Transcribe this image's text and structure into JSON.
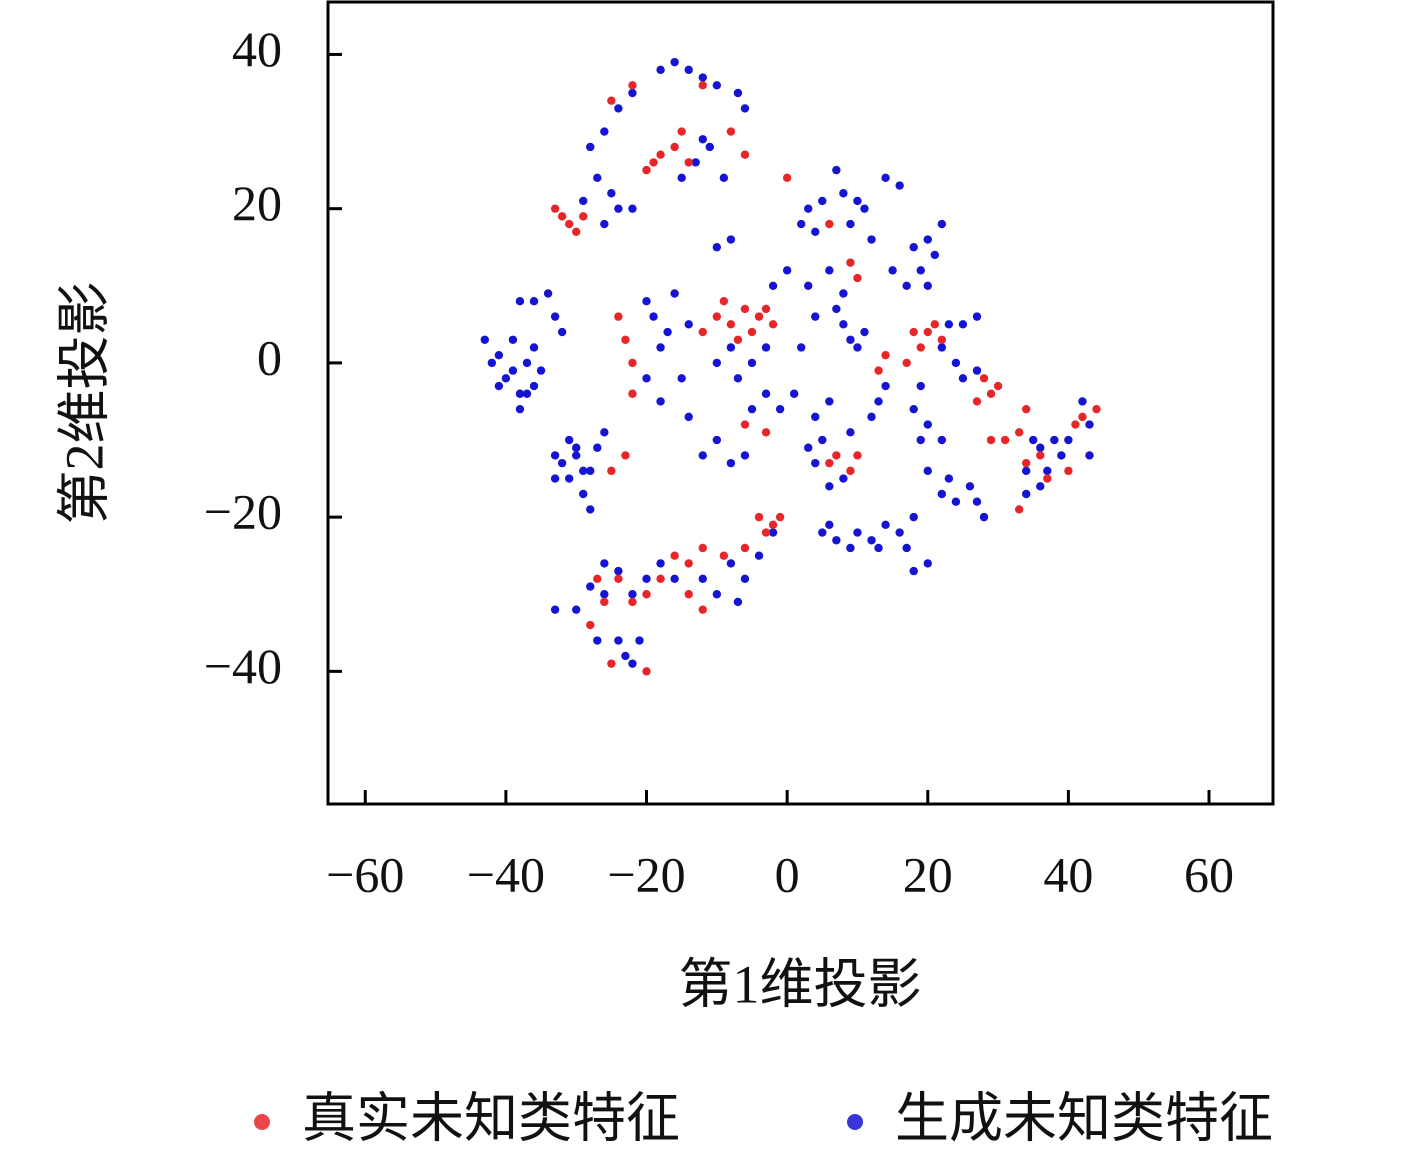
{
  "chart_data": {
    "type": "scatter",
    "x_label": "第1维投影",
    "y_label": "第2维投影",
    "xlim": [
      -65.3,
      69.1
    ],
    "ylim": [
      -57.2,
      46.8
    ],
    "xticks": [
      {
        "value": -60,
        "label": "−60"
      },
      {
        "value": -40,
        "label": "−40"
      },
      {
        "value": -20,
        "label": "−20"
      },
      0,
      20,
      40,
      60
    ],
    "yticks": [
      {
        "value": -40,
        "label": "−40"
      },
      {
        "value": -20,
        "label": "−20"
      },
      0,
      20,
      40
    ],
    "grid": false,
    "legend": "bottom",
    "series": [
      {
        "name": "真实未知类特征",
        "color": "#e8262a",
        "x": [
          -18,
          -16,
          -14,
          -19,
          -15,
          -20,
          -32,
          -31,
          -33,
          -29,
          -30,
          -25,
          -22,
          -12,
          -8,
          -6,
          -10,
          -8,
          -6,
          -4,
          -2,
          -7,
          -12,
          -3,
          -5,
          -9,
          -23,
          -24,
          -22,
          -22,
          -23,
          -25,
          -4,
          -2,
          -1,
          -3,
          -6,
          -9,
          -12,
          -14,
          -16,
          -18,
          -20,
          -22,
          -24,
          -27,
          -26,
          -28,
          -25,
          -20,
          -12,
          -14,
          20,
          21,
          18,
          19,
          17,
          22,
          28,
          30,
          29,
          27,
          34,
          31,
          29,
          33,
          36,
          37,
          33,
          41,
          42,
          44,
          40,
          34,
          6,
          9,
          10,
          7,
          13,
          14,
          9,
          10,
          0,
          6,
          -3,
          -6
        ],
        "values": [
          27,
          28,
          26,
          26,
          30,
          25,
          19,
          18,
          20,
          19,
          17,
          34,
          36,
          36,
          30,
          27,
          6,
          5,
          7,
          6,
          5,
          3,
          4,
          7,
          4,
          8,
          3,
          6,
          0,
          -4,
          -12,
          -14,
          -20,
          -21,
          -20,
          -22,
          -24,
          -25,
          -24,
          -26,
          -25,
          -28,
          -30,
          -31,
          -28,
          -28,
          -31,
          -34,
          -39,
          -40,
          -32,
          -30,
          4,
          5,
          4,
          2,
          0,
          3,
          -2,
          -3,
          -4,
          -5,
          -6,
          -10,
          -10,
          -9,
          -12,
          -15,
          -19,
          -8,
          -7,
          -6,
          -14,
          -13,
          -13,
          -14,
          -12,
          -12,
          -1,
          1,
          13,
          11,
          24,
          18,
          -9,
          -8
        ]
      },
      {
        "name": "生成未知类特征",
        "color": "#1414d2",
        "x": [
          -43,
          -41,
          -40,
          -38,
          -39,
          -37,
          -36,
          -35,
          -38,
          -37,
          -41,
          -39,
          -42,
          -36,
          -34,
          -36,
          -38,
          -33,
          -32,
          -33,
          -32,
          -31,
          -30,
          -29,
          -28,
          -31,
          -33,
          -30,
          -28,
          -27,
          -26,
          -29,
          -28,
          -26,
          -24,
          -22,
          -18,
          -16,
          -14,
          -12,
          -10,
          -7,
          -6,
          -11,
          -13,
          -15,
          -25,
          -27,
          -24,
          -26,
          -29,
          -12,
          -9,
          -10,
          -8,
          -22,
          -20,
          -19,
          -17,
          -18,
          -16,
          -14,
          -20,
          -18,
          -15,
          -14,
          -12,
          -10,
          -8,
          -6,
          -5,
          -3,
          -1,
          1,
          -7,
          -10,
          -8,
          -5,
          -3,
          2,
          4,
          3,
          6,
          8,
          -2,
          0,
          2,
          3,
          5,
          4,
          8,
          7,
          10,
          9,
          11,
          14,
          16,
          12,
          15,
          18,
          19,
          20,
          21,
          22,
          17,
          20,
          8,
          9,
          10,
          7,
          11,
          6,
          9,
          12,
          13,
          14,
          4,
          3,
          4,
          6,
          8,
          5,
          22,
          24,
          25,
          27,
          23,
          25,
          27,
          19,
          18,
          20,
          19,
          22,
          20,
          23,
          24,
          27,
          26,
          28,
          22,
          35,
          36,
          38,
          39,
          37,
          34,
          36,
          40,
          43,
          42,
          43,
          34,
          5,
          7,
          6,
          10,
          12,
          14,
          13,
          16,
          18,
          17,
          18,
          20,
          9,
          -2,
          -4,
          -6,
          -8,
          -7,
          -10,
          -12,
          -16,
          -18,
          -20,
          -22,
          -24,
          -26,
          -28,
          -30,
          -33,
          -27,
          -23,
          -21,
          -22,
          -24,
          -26
        ],
        "values": [
          3,
          1,
          -2,
          -4,
          3,
          0,
          2,
          -1,
          -6,
          -4,
          -3,
          -1,
          0,
          -3,
          9,
          8,
          8,
          6,
          4,
          -12,
          -13,
          -15,
          -12,
          -17,
          -19,
          -10,
          -15,
          -11,
          -14,
          -11,
          -9,
          -14,
          28,
          30,
          33,
          35,
          38,
          39,
          38,
          37,
          36,
          35,
          33,
          28,
          26,
          24,
          22,
          24,
          20,
          18,
          21,
          29,
          24,
          15,
          16,
          20,
          8,
          6,
          4,
          2,
          9,
          5,
          -2,
          -5,
          -2,
          -7,
          -12,
          -10,
          -13,
          -12,
          -6,
          -4,
          -6,
          -4,
          -2,
          0,
          2,
          0,
          2,
          2,
          6,
          10,
          12,
          9,
          10,
          12,
          18,
          20,
          21,
          17,
          22,
          25,
          21,
          18,
          20,
          24,
          23,
          16,
          12,
          15,
          12,
          16,
          14,
          18,
          10,
          10,
          5,
          3,
          2,
          7,
          4,
          -5,
          -9,
          -7,
          -5,
          -3,
          -7,
          -11,
          -13,
          -16,
          -15,
          -10,
          2,
          0,
          -2,
          -1,
          5,
          5,
          6,
          -3,
          -6,
          -8,
          -10,
          -10,
          -14,
          -15,
          -18,
          -18,
          -16,
          -20,
          -17,
          -10,
          -11,
          -10,
          -12,
          -14,
          -14,
          -16,
          -10,
          -12,
          -5,
          -8,
          -17,
          -22,
          -23,
          -21,
          -22,
          -23,
          -21,
          -24,
          -22,
          -20,
          -24,
          -27,
          -26,
          -24,
          -22,
          -25,
          -28,
          -26,
          -31,
          -30,
          -28,
          -28,
          -26,
          -28,
          -30,
          -27,
          -26,
          -29,
          -32,
          -32,
          -36,
          -38,
          -36,
          -39,
          -36,
          -30
        ]
      }
    ]
  }
}
